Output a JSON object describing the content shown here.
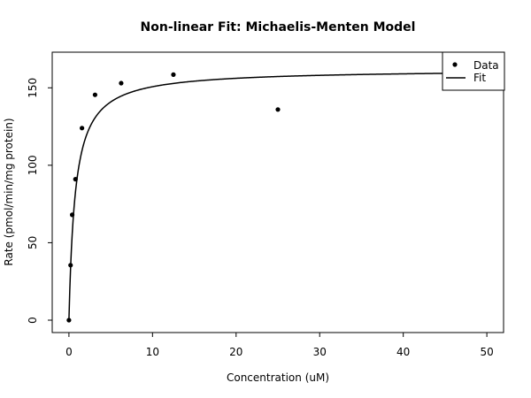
{
  "chart_data": {
    "type": "scatter",
    "title": "Non-linear Fit: Michaelis-Menten Model",
    "xlabel": "Concentration (uM)",
    "ylabel": "Rate (pmol/min/mg protein)",
    "xlim": [
      -2,
      52
    ],
    "ylim": [
      -8,
      173
    ],
    "x_ticks": [
      0,
      10,
      20,
      30,
      40,
      50
    ],
    "y_ticks": [
      0,
      50,
      100,
      150
    ],
    "grid": false,
    "legend_position": "top-right",
    "series": [
      {
        "name": "Data",
        "kind": "points",
        "x": [
          0,
          0.195,
          0.39,
          0.78,
          1.56,
          3.125,
          6.25,
          12.5,
          25
        ],
        "y": [
          0,
          35.5,
          68,
          91,
          124,
          145.5,
          153,
          158.5,
          136
        ]
      },
      {
        "name": "Fit",
        "kind": "line",
        "model": "Vmax * x / (Km + x)",
        "params": {
          "Vmax": 162,
          "Km": 0.75
        },
        "x_range": [
          0,
          50
        ]
      }
    ],
    "colors": {
      "points": "#000000",
      "line": "#000000",
      "frame": "#000000"
    }
  }
}
